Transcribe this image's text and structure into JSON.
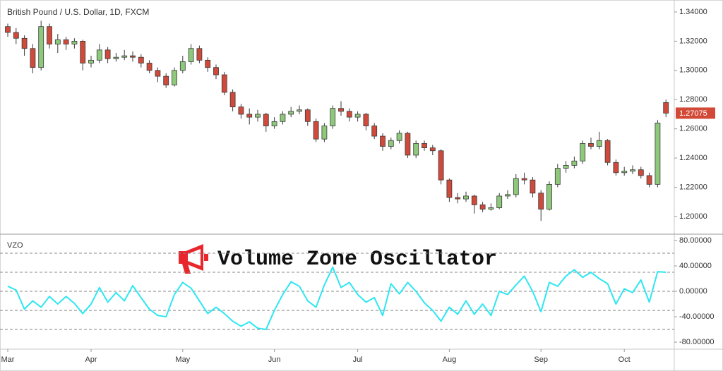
{
  "chart_data": [
    {
      "type": "candlestick",
      "title": "British Pound / U.S. Dollar, 1D, FXCM",
      "categories": [
        "Mar",
        null,
        null,
        null,
        null,
        null,
        null,
        null,
        null,
        null,
        "Apr",
        null,
        null,
        null,
        null,
        null,
        null,
        null,
        null,
        null,
        null,
        "May",
        null,
        null,
        null,
        null,
        null,
        null,
        null,
        null,
        null,
        null,
        "Jun",
        null,
        null,
        null,
        null,
        null,
        null,
        null,
        null,
        null,
        "Jul",
        null,
        null,
        null,
        null,
        null,
        null,
        null,
        null,
        null,
        null,
        "Aug",
        null,
        null,
        null,
        null,
        null,
        null,
        null,
        null,
        null,
        null,
        "Sep",
        null,
        null,
        null,
        null,
        null,
        null,
        null,
        null,
        null,
        "Oct",
        null,
        null,
        null,
        null,
        null
      ],
      "open": [
        1.33,
        1.326,
        1.322,
        1.315,
        1.302,
        1.33,
        1.318,
        1.321,
        1.318,
        1.32,
        1.305,
        1.307,
        1.314,
        1.308,
        1.309,
        1.31,
        1.309,
        1.305,
        1.3,
        1.296,
        1.29,
        1.3,
        1.306,
        1.315,
        1.307,
        1.302,
        1.297,
        1.285,
        1.275,
        1.27,
        1.268,
        1.27,
        1.262,
        1.265,
        1.27,
        1.272,
        1.273,
        1.265,
        1.253,
        1.262,
        1.274,
        1.272,
        1.268,
        1.27,
        1.262,
        1.255,
        1.248,
        1.252,
        1.257,
        1.242,
        1.25,
        1.247,
        1.245,
        1.225,
        1.213,
        1.212,
        1.214,
        1.208,
        1.205,
        1.206,
        1.214,
        1.215,
        1.226,
        1.225,
        1.216,
        1.205,
        1.222,
        1.233,
        1.235,
        1.238,
        1.25,
        1.248,
        1.252,
        1.237,
        1.23,
        1.231,
        1.232,
        1.228,
        1.222,
        1.278
      ],
      "high": [
        1.332,
        1.329,
        1.324,
        1.318,
        1.334,
        1.332,
        1.325,
        1.323,
        1.322,
        1.321,
        1.31,
        1.318,
        1.316,
        1.312,
        1.314,
        1.313,
        1.311,
        1.307,
        1.302,
        1.298,
        1.302,
        1.31,
        1.318,
        1.317,
        1.309,
        1.304,
        1.299,
        1.287,
        1.277,
        1.274,
        1.273,
        1.271,
        1.268,
        1.272,
        1.275,
        1.276,
        1.274,
        1.267,
        1.264,
        1.276,
        1.279,
        1.274,
        1.272,
        1.271,
        1.264,
        1.257,
        1.254,
        1.259,
        1.258,
        1.252,
        1.252,
        1.249,
        1.246,
        1.226,
        1.216,
        1.217,
        1.215,
        1.21,
        1.209,
        1.216,
        1.218,
        1.229,
        1.23,
        1.227,
        1.218,
        1.224,
        1.236,
        1.238,
        1.241,
        1.252,
        1.254,
        1.258,
        1.253,
        1.239,
        1.234,
        1.235,
        1.234,
        1.23,
        1.266,
        1.28
      ],
      "low": [
        1.323,
        1.318,
        1.31,
        1.298,
        1.3,
        1.315,
        1.312,
        1.314,
        1.315,
        1.3,
        1.302,
        1.305,
        1.305,
        1.306,
        1.307,
        1.306,
        1.302,
        1.298,
        1.292,
        1.288,
        1.289,
        1.298,
        1.304,
        1.305,
        1.299,
        1.294,
        1.283,
        1.272,
        1.267,
        1.263,
        1.265,
        1.258,
        1.26,
        1.263,
        1.268,
        1.27,
        1.262,
        1.251,
        1.251,
        1.26,
        1.269,
        1.265,
        1.265,
        1.259,
        1.253,
        1.245,
        1.246,
        1.25,
        1.24,
        1.24,
        1.245,
        1.242,
        1.222,
        1.21,
        1.209,
        1.21,
        1.202,
        1.203,
        1.204,
        1.205,
        1.212,
        1.213,
        1.222,
        1.213,
        1.197,
        1.204,
        1.22,
        1.23,
        1.233,
        1.236,
        1.246,
        1.246,
        1.235,
        1.228,
        1.228,
        1.229,
        1.226,
        1.22,
        1.22,
        1.268
      ],
      "close": [
        1.326,
        1.322,
        1.315,
        1.302,
        1.33,
        1.318,
        1.321,
        1.318,
        1.32,
        1.305,
        1.307,
        1.314,
        1.308,
        1.309,
        1.31,
        1.309,
        1.305,
        1.3,
        1.296,
        1.29,
        1.3,
        1.306,
        1.315,
        1.307,
        1.302,
        1.297,
        1.285,
        1.275,
        1.27,
        1.268,
        1.27,
        1.262,
        1.265,
        1.27,
        1.272,
        1.273,
        1.265,
        1.253,
        1.262,
        1.274,
        1.272,
        1.268,
        1.27,
        1.262,
        1.255,
        1.248,
        1.252,
        1.257,
        1.242,
        1.25,
        1.247,
        1.245,
        1.225,
        1.213,
        1.212,
        1.214,
        1.208,
        1.205,
        1.206,
        1.214,
        1.215,
        1.226,
        1.225,
        1.216,
        1.205,
        1.222,
        1.233,
        1.235,
        1.238,
        1.25,
        1.248,
        1.252,
        1.237,
        1.23,
        1.231,
        1.232,
        1.228,
        1.222,
        1.264,
        1.27075
      ],
      "up_color": "#8ec97b",
      "down_color": "#cf4a3a",
      "last_price_color": "#d24a37",
      "ylim": [
        1.1879,
        1.3482
      ],
      "yticks": [
        {
          "value": 1.2,
          "label": "1.20000"
        },
        {
          "value": 1.22,
          "label": "1.22000"
        },
        {
          "value": 1.24,
          "label": "1.24000"
        },
        {
          "value": 1.26,
          "label": "1.26000"
        },
        {
          "value": 1.28,
          "label": "1.28000"
        },
        {
          "value": 1.3,
          "label": "1.30000"
        },
        {
          "value": 1.32,
          "label": "1.32000"
        },
        {
          "value": 1.34,
          "label": "1.34000"
        }
      ],
      "grid": false
    },
    {
      "type": "line",
      "title": "VZO",
      "annotation": "Volume Zone Oscillator",
      "color": "#2ee6f2",
      "values": [
        8,
        2,
        -28,
        -15,
        -25,
        -8,
        -20,
        -8,
        -19,
        -35,
        -20,
        6,
        -17,
        -2,
        -15,
        9,
        -10,
        -28,
        -38,
        -40,
        -5,
        14,
        5,
        -15,
        -35,
        -25,
        -35,
        -47,
        -55,
        -48,
        -58,
        -60,
        -30,
        -5,
        15,
        8,
        -15,
        -25,
        10,
        38,
        6,
        14,
        -5,
        -17,
        -10,
        -38,
        12,
        -4,
        14,
        0,
        -18,
        -30,
        -47,
        -25,
        -36,
        -15,
        -36,
        -20,
        -38,
        0,
        -5,
        10,
        24,
        0,
        -32,
        14,
        8,
        24,
        34,
        22,
        30,
        20,
        12,
        -20,
        4,
        -2,
        18,
        -17,
        31,
        30
      ],
      "ylim": [
        -91,
        90
      ],
      "yticks": [
        {
          "value": -80,
          "label": "-80.00000"
        },
        {
          "value": -40,
          "label": "-40.00000"
        },
        {
          "value": 0,
          "label": "0.00000"
        },
        {
          "value": 40,
          "label": "40.00000"
        },
        {
          "value": 80,
          "label": "80.00000"
        }
      ],
      "levels": [
        60,
        30,
        0,
        -30,
        -60
      ]
    }
  ]
}
